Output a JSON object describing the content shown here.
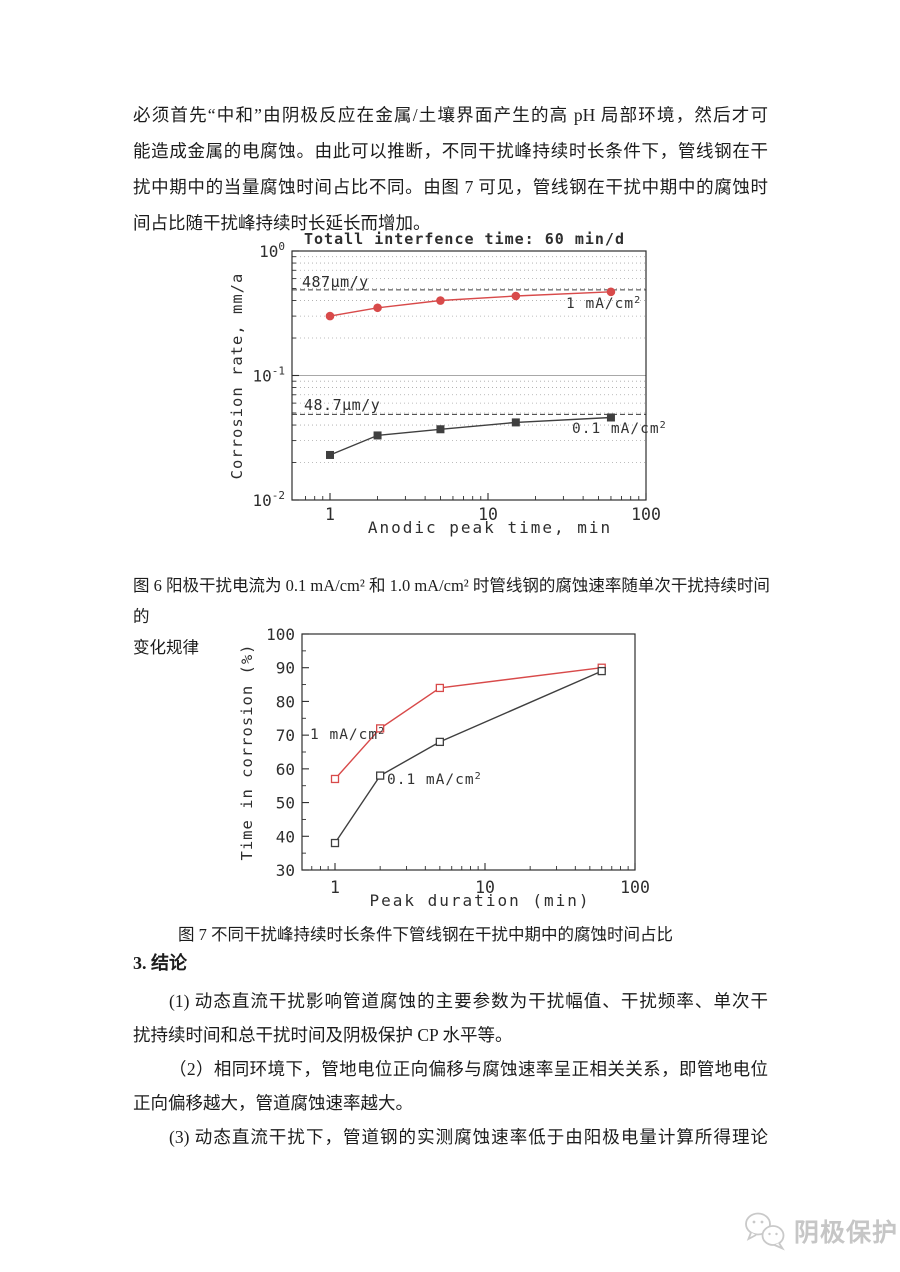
{
  "document": {
    "intro_lines": [
      "必须首先“中和”由阴极反应在金属/土壤界面产生的高 pH 局部环境，然后才可",
      "能造成金属的电腐蚀。由此可以推断，不同干扰峰持续时长条件下，管线钢在干",
      "扰中期中的当量腐蚀时间占比不同。由图 7 可见，管线钢在干扰中期中的腐蚀时",
      "间占比随干扰峰持续时长延长而增加。"
    ],
    "fig6_caption_line1": "图 6  阳极干扰电流为 0.1 mA/cm² 和 1.0 mA/cm² 时管线钢的腐蚀速率随单次干扰持续时间的",
    "fig6_caption_line2": "变化规律",
    "fig7_caption": "图 7 不同干扰峰持续时长条件下管线钢在干扰中期中的腐蚀时间占比",
    "conclusion": {
      "heading": "3. 结论",
      "paragraphs": [
        {
          "line1": "(1) 动态直流干扰影响管道腐蚀的主要参数为干扰幅值、干扰频率、单次干",
          "line2": "扰持续时间和总干扰时间及阴极保护 CP 水平等。"
        },
        {
          "line1": "（2）相同环境下，管地电位正向偏移与腐蚀速率呈正相关关系，即管地电位",
          "line2": "正向偏移越大，管道腐蚀速率越大。"
        },
        {
          "line1": "(3) 动态直流干扰下，管道钢的实测腐蚀速率低于由阳极电量计算所得理论",
          "line2": ""
        }
      ]
    },
    "watermark": {
      "text": "阴极保护",
      "icon": "wechat-chat-bubbles",
      "color": "#c6c6c6"
    }
  },
  "chart_data": [
    {
      "id": "fig6",
      "type": "line",
      "title": "Totall interfence time: 60 min/d",
      "xlabel": "Anodic peak time, min",
      "ylabel": "Corrosion rate, mm/a",
      "x_scale": "log",
      "y_scale": "log",
      "xlim": [
        0.6,
        100
      ],
      "ylim": [
        0.01,
        1
      ],
      "x_ticks": [
        1,
        10,
        100
      ],
      "y_ticks": [
        {
          "value": 1,
          "exp": "0"
        },
        {
          "value": 0.1,
          "exp": "-1"
        },
        {
          "value": 0.01,
          "exp": "-2"
        }
      ],
      "grid": true,
      "series": [
        {
          "name": "1 mA/cm²",
          "color": "#d84a4a",
          "marker": "circle-filled",
          "x": [
            1,
            2,
            5,
            15,
            60
          ],
          "y": [
            0.3,
            0.35,
            0.4,
            0.435,
            0.47
          ]
        },
        {
          "name": "0.1 mA/cm²",
          "color": "#3f3f3f",
          "marker": "square-filled",
          "x": [
            1,
            2,
            5,
            15,
            60
          ],
          "y": [
            0.023,
            0.033,
            0.037,
            0.042,
            0.046
          ]
        }
      ],
      "annotations": [
        {
          "label": "487μm/y",
          "value": 0.487
        },
        {
          "label": "48.7μm/y",
          "value": 0.0487
        }
      ]
    },
    {
      "id": "fig7",
      "type": "line",
      "title": "",
      "xlabel": "Peak duration (min)",
      "ylabel": "Time in corrosion (%)",
      "x_scale": "log",
      "y_scale": "linear",
      "xlim": [
        0.6,
        100
      ],
      "ylim": [
        30,
        100
      ],
      "x_ticks": [
        1,
        10,
        100
      ],
      "y_ticks": [
        30,
        40,
        50,
        60,
        70,
        80,
        90,
        100
      ],
      "grid": false,
      "series": [
        {
          "name": "1 mA/cm²",
          "color": "#d84a4a",
          "marker": "square-open",
          "x": [
            1,
            2,
            5,
            60
          ],
          "y": [
            57,
            72,
            84,
            90
          ]
        },
        {
          "name": "0.1 mA/cm²",
          "color": "#3f3f3f",
          "marker": "square-open",
          "x": [
            1,
            2,
            5,
            60
          ],
          "y": [
            38,
            58,
            68,
            89
          ]
        }
      ],
      "annotations": []
    }
  ]
}
